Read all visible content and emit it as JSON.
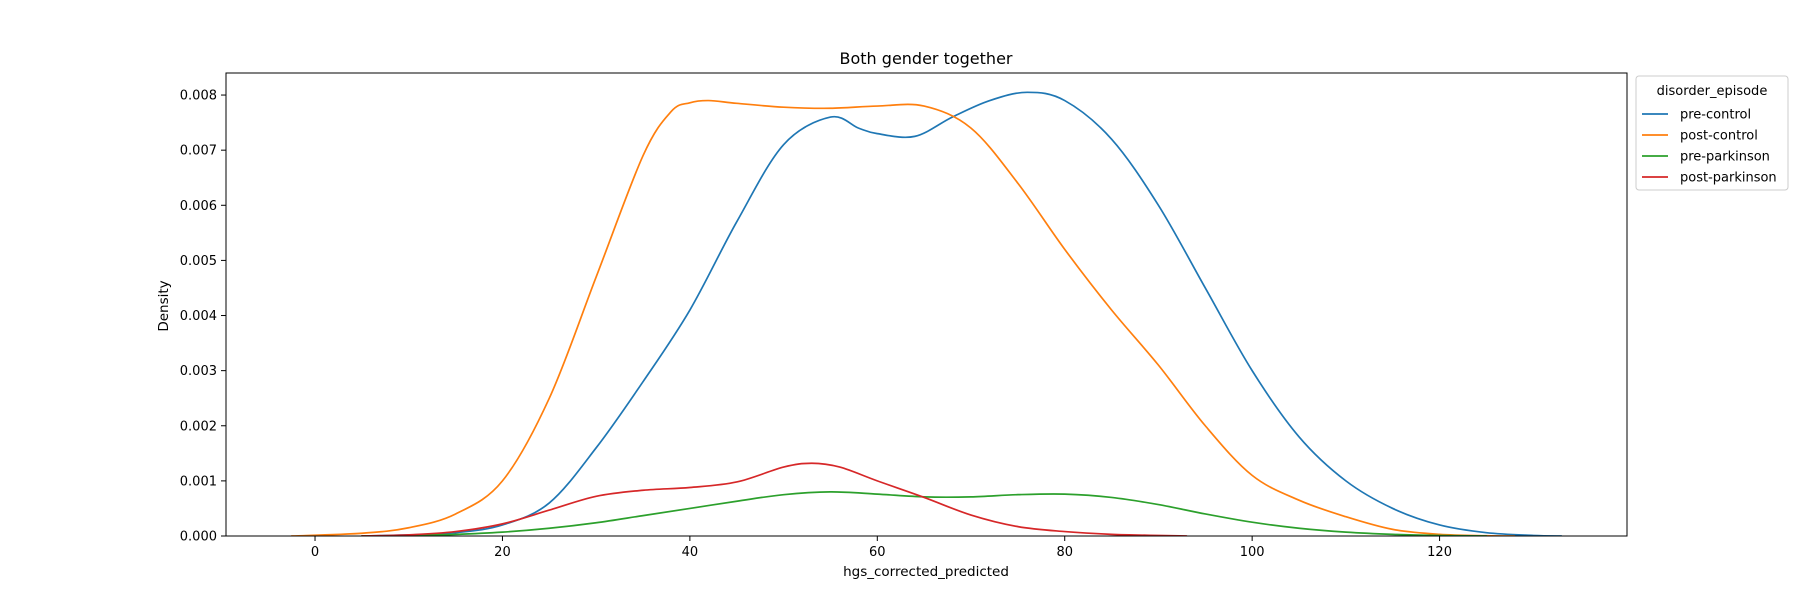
{
  "chart_data": {
    "type": "line",
    "title": "Both gender together",
    "xlabel": "hgs_corrected_predicted",
    "ylabel": "Density",
    "xlim": [
      -9.5,
      140.0
    ],
    "ylim": [
      0.0,
      0.0084
    ],
    "xticks": [
      0,
      20,
      40,
      60,
      80,
      100,
      120
    ],
    "yticks": [
      0.0,
      0.001,
      0.002,
      0.003,
      0.004,
      0.005,
      0.006,
      0.007,
      0.008
    ],
    "grid": false,
    "legend": {
      "title": "disorder_episode",
      "placement": "outside-upper-right"
    },
    "series": [
      {
        "name": "pre-control",
        "color": "#1f77b4",
        "x": [
          5,
          10,
          15,
          20,
          25,
          30,
          35,
          40,
          45,
          50,
          55,
          58,
          60,
          64,
          68,
          72,
          76,
          80,
          85,
          90,
          95,
          100,
          105,
          110,
          115,
          120,
          125,
          130,
          133
        ],
        "y": [
          0.0,
          2e-05,
          6e-05,
          0.0002,
          0.0006,
          0.0016,
          0.0028,
          0.0041,
          0.0057,
          0.0071,
          0.0076,
          0.0074,
          0.0073,
          0.00725,
          0.0076,
          0.0079,
          0.00805,
          0.0079,
          0.0072,
          0.006,
          0.0045,
          0.003,
          0.0018,
          0.001,
          0.0005,
          0.0002,
          6e-05,
          1e-05,
          0.0
        ]
      },
      {
        "name": "post-control",
        "color": "#ff7f0e",
        "x": [
          -2.5,
          5,
          10,
          15,
          20,
          25,
          30,
          35,
          38,
          40,
          42,
          45,
          50,
          55,
          60,
          65,
          70,
          75,
          80,
          85,
          90,
          95,
          100,
          105,
          110,
          115,
          120,
          125,
          128
        ],
        "y": [
          0.0,
          5e-05,
          0.00015,
          0.0004,
          0.001,
          0.0025,
          0.0047,
          0.0069,
          0.0077,
          0.00786,
          0.0079,
          0.00785,
          0.00778,
          0.00776,
          0.0078,
          0.0078,
          0.0074,
          0.0064,
          0.0052,
          0.0041,
          0.0031,
          0.002,
          0.0011,
          0.00065,
          0.00035,
          0.00012,
          3e-05,
          5e-06,
          0.0
        ]
      },
      {
        "name": "pre-parkinson",
        "color": "#2ca02c",
        "x": [
          5,
          10,
          15,
          20,
          25,
          30,
          35,
          40,
          45,
          50,
          55,
          60,
          65,
          70,
          75,
          80,
          85,
          90,
          95,
          100,
          105,
          110,
          115,
          120,
          125
        ],
        "y": [
          0.0,
          1e-05,
          3e-05,
          7e-05,
          0.00014,
          0.00024,
          0.00037,
          0.0005,
          0.00063,
          0.00075,
          0.0008,
          0.00076,
          0.00071,
          0.00071,
          0.00075,
          0.00076,
          0.0007,
          0.00057,
          0.0004,
          0.00025,
          0.00014,
          7e-05,
          3e-05,
          1e-05,
          0.0
        ]
      },
      {
        "name": "post-parkinson",
        "color": "#d62728",
        "x": [
          5,
          10,
          15,
          20,
          25,
          30,
          35,
          40,
          45,
          50,
          53,
          56,
          60,
          65,
          70,
          75,
          80,
          85,
          90,
          93
        ],
        "y": [
          0.0,
          2e-05,
          8e-05,
          0.00022,
          0.00047,
          0.00072,
          0.00083,
          0.00088,
          0.00098,
          0.00125,
          0.00132,
          0.00125,
          0.001,
          0.0007,
          0.00038,
          0.00017,
          8e-05,
          3e-05,
          1e-05,
          0.0
        ]
      }
    ]
  }
}
